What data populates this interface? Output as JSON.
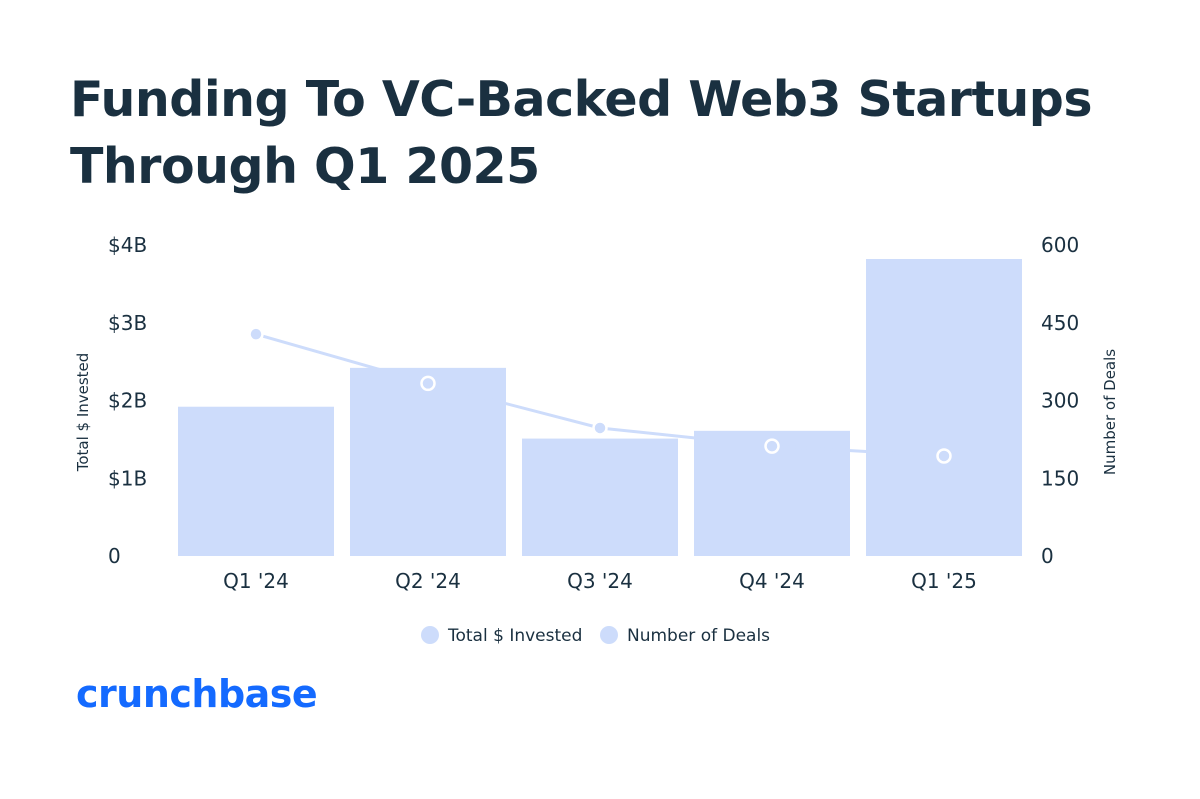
{
  "title_lines": [
    "Funding To VC-Backed Web3 Startups",
    "Through Q1 2025"
  ],
  "brand": "crunchbase",
  "colors": {
    "title": "#1a3040",
    "text": "#1a3040",
    "bar": "#cddcfb",
    "line": "#cddcfb",
    "brand": "#146aff"
  },
  "chart_data": {
    "type": "bar",
    "categories": [
      "Q1 '24",
      "Q2 '24",
      "Q3 '24",
      "Q4 '24",
      "Q1 '25"
    ],
    "series": [
      {
        "name": "Total $ Invested",
        "type": "bar",
        "axis": "left",
        "values": [
          1.92,
          2.42,
          1.51,
          1.61,
          3.82
        ]
      },
      {
        "name": "Number of Deals",
        "type": "line",
        "axis": "right",
        "values": [
          428,
          333,
          247,
          212,
          193
        ]
      }
    ],
    "y_left": {
      "label": "Total $ Invested",
      "range": [
        0,
        4
      ],
      "ticks": [
        {
          "v": 0,
          "t": "0"
        },
        {
          "v": 1,
          "t": "$1B"
        },
        {
          "v": 2,
          "t": "$2B"
        },
        {
          "v": 3,
          "t": "$3B"
        },
        {
          "v": 4,
          "t": "$4B"
        }
      ]
    },
    "y_right": {
      "label": "Number of Deals",
      "range": [
        0,
        600
      ],
      "ticks": [
        {
          "v": 0,
          "t": "0"
        },
        {
          "v": 150,
          "t": "150"
        },
        {
          "v": 300,
          "t": "300"
        },
        {
          "v": 450,
          "t": "450"
        },
        {
          "v": 600,
          "t": "600"
        }
      ]
    },
    "legend": [
      {
        "label": "Total $ Invested"
      },
      {
        "label": "Number of Deals"
      }
    ],
    "legend_position": "bottom",
    "grid": false
  }
}
